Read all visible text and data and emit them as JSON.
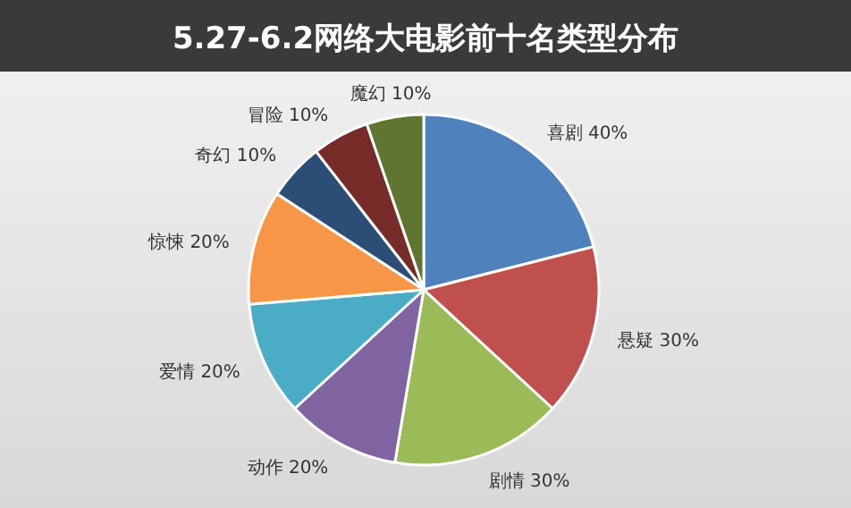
{
  "chart_data": {
    "type": "pie",
    "title": "5.27-6.2网络大电影前十名类型分布",
    "categories": [
      "喜剧",
      "悬疑",
      "剧情",
      "动作",
      "爱情",
      "惊悚",
      "奇幻",
      "冒险",
      "魔幻"
    ],
    "values": [
      40,
      30,
      30,
      20,
      20,
      20,
      10,
      10,
      10
    ],
    "value_labels": [
      "40%",
      "30%",
      "30%",
      "20%",
      "20%",
      "20%",
      "10%",
      "10%",
      "10%"
    ],
    "colors": [
      "#4f81bd",
      "#c0504d",
      "#9bbb59",
      "#8064a2",
      "#4bacc6",
      "#f79646",
      "#2c4d75",
      "#772c2a",
      "#5f7530"
    ]
  }
}
